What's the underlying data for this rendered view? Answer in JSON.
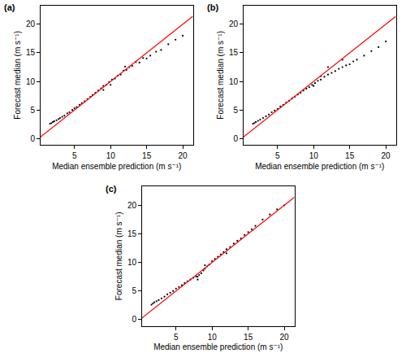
{
  "chart_data": [
    {
      "type": "scatter",
      "title": "(a)",
      "x_label": "Median ensemble prediction (m s⁻¹)",
      "y_label": "Forecast median (m s⁻¹)",
      "xlim": [
        0.3,
        21.4
      ],
      "ylim": [
        -1.1,
        23.3
      ],
      "xticks": [
        5,
        10,
        15,
        20
      ],
      "yticks": [
        0,
        5,
        10,
        15,
        20
      ],
      "grid": false,
      "series": [
        {
          "type": "scatter",
          "color": "#000000",
          "marker": "circle",
          "x": [
            1.6,
            1.8,
            2.0,
            2.2,
            2.5,
            2.8,
            3.0,
            3.3,
            3.6,
            4.0,
            4.3,
            4.7,
            5.0,
            5.3,
            5.7,
            6.0,
            6.4,
            6.8,
            7.2,
            7.5,
            7.9,
            8.3,
            8.7,
            9.0,
            9.4,
            9.8,
            10.2,
            10.6,
            11.0,
            11.4,
            11.8,
            12.2,
            12.6,
            13.0,
            13.5,
            14.0,
            14.5,
            15.0,
            15.5,
            16.3,
            17.0,
            18.0,
            19.0,
            20.0,
            10.0,
            12.0,
            9.0
          ],
          "y": [
            2.6,
            2.7,
            2.9,
            3.0,
            3.2,
            3.4,
            3.6,
            3.8,
            4.0,
            4.4,
            4.6,
            5.0,
            5.3,
            5.5,
            5.9,
            6.2,
            6.5,
            6.9,
            7.3,
            7.6,
            8.0,
            8.4,
            8.8,
            9.2,
            9.4,
            9.9,
            10.3,
            10.5,
            11.0,
            11.2,
            11.9,
            12.0,
            12.5,
            12.7,
            13.4,
            13.3,
            14.1,
            14.0,
            14.5,
            15.2,
            15.5,
            16.5,
            17.3,
            18.0,
            9.4,
            12.6,
            8.5
          ]
        },
        {
          "type": "line",
          "color": "#ff0000",
          "line_style": "solid",
          "x": [
            0,
            21.4
          ],
          "y": [
            0,
            21.4
          ]
        }
      ]
    },
    {
      "type": "scatter",
      "title": "(b)",
      "x_label": "Median ensemble prediction (m s⁻¹)",
      "y_label": "Forecast median (m s⁻¹)",
      "xlim": [
        0.3,
        21.4
      ],
      "ylim": [
        -1.1,
        23.3
      ],
      "xticks": [
        5,
        10,
        15,
        20
      ],
      "yticks": [
        0,
        5,
        10,
        15,
        20
      ],
      "grid": false,
      "series": [
        {
          "type": "scatter",
          "color": "#000000",
          "marker": "circle",
          "x": [
            1.6,
            1.8,
            2.0,
            2.3,
            2.6,
            3.0,
            3.4,
            3.8,
            4.2,
            4.6,
            5.0,
            5.4,
            5.8,
            6.2,
            6.6,
            7.0,
            7.4,
            7.8,
            8.2,
            8.6,
            9.0,
            9.4,
            9.8,
            10.2,
            10.6,
            11.0,
            11.5,
            12.0,
            12.5,
            13.0,
            13.5,
            14.0,
            14.5,
            15.0,
            15.5,
            16.0,
            17.0,
            18.0,
            19.0,
            20.0,
            12.0,
            14.0,
            10.0,
            11.0
          ],
          "y": [
            2.6,
            2.7,
            2.9,
            3.1,
            3.3,
            3.6,
            3.9,
            4.2,
            4.6,
            4.9,
            5.2,
            5.6,
            5.9,
            6.3,
            6.6,
            7.0,
            7.3,
            7.7,
            8.0,
            8.4,
            8.7,
            9.0,
            9.4,
            9.7,
            10.1,
            10.3,
            10.8,
            11.2,
            11.5,
            11.8,
            12.2,
            12.5,
            12.8,
            13.0,
            13.5,
            13.8,
            14.5,
            15.3,
            16.0,
            17.0,
            12.5,
            13.8,
            9.2,
            10.9
          ]
        },
        {
          "type": "line",
          "color": "#ff0000",
          "line_style": "solid",
          "x": [
            0,
            21.4
          ],
          "y": [
            0,
            21.4
          ]
        }
      ]
    },
    {
      "type": "scatter",
      "title": "(c)",
      "x_label": "Median ensemble prediction (m s⁻¹)",
      "y_label": "Forecast median (m s⁻¹)",
      "xlim": [
        0.3,
        21.4
      ],
      "ylim": [
        -1.1,
        23.3
      ],
      "xticks": [
        5,
        10,
        15,
        20
      ],
      "yticks": [
        0,
        5,
        10,
        15,
        20
      ],
      "grid": false,
      "series": [
        {
          "type": "scatter",
          "color": "#000000",
          "marker": "circle",
          "x": [
            1.6,
            1.8,
            2.0,
            2.3,
            2.6,
            3.0,
            3.4,
            3.8,
            4.2,
            4.6,
            5.0,
            5.4,
            5.8,
            6.2,
            6.6,
            7.0,
            7.4,
            7.8,
            8.0,
            8.2,
            8.5,
            8.8,
            9.0,
            9.3,
            9.6,
            10.0,
            10.4,
            10.8,
            11.2,
            11.6,
            12.0,
            12.5,
            13.0,
            13.5,
            14.0,
            14.5,
            15.0,
            15.5,
            16.0,
            17.0,
            18.0,
            19.0,
            20.0,
            8.0,
            9.0,
            12.0
          ],
          "y": [
            2.6,
            2.8,
            3.0,
            3.2,
            3.4,
            3.7,
            4.0,
            4.4,
            4.7,
            5.0,
            5.4,
            5.7,
            6.0,
            6.4,
            6.7,
            7.0,
            7.3,
            7.5,
            7.5,
            7.8,
            8.1,
            8.6,
            8.9,
            9.3,
            9.6,
            10.2,
            10.6,
            11.0,
            11.4,
            11.8,
            12.3,
            12.7,
            13.3,
            13.8,
            14.2,
            14.8,
            15.3,
            15.8,
            16.4,
            17.5,
            18.4,
            19.3,
            20.0,
            7.0,
            9.5,
            11.6
          ]
        },
        {
          "type": "line",
          "color": "#ff0000",
          "line_style": "solid",
          "x": [
            0,
            21.4
          ],
          "y": [
            0,
            21.4
          ]
        }
      ]
    }
  ]
}
